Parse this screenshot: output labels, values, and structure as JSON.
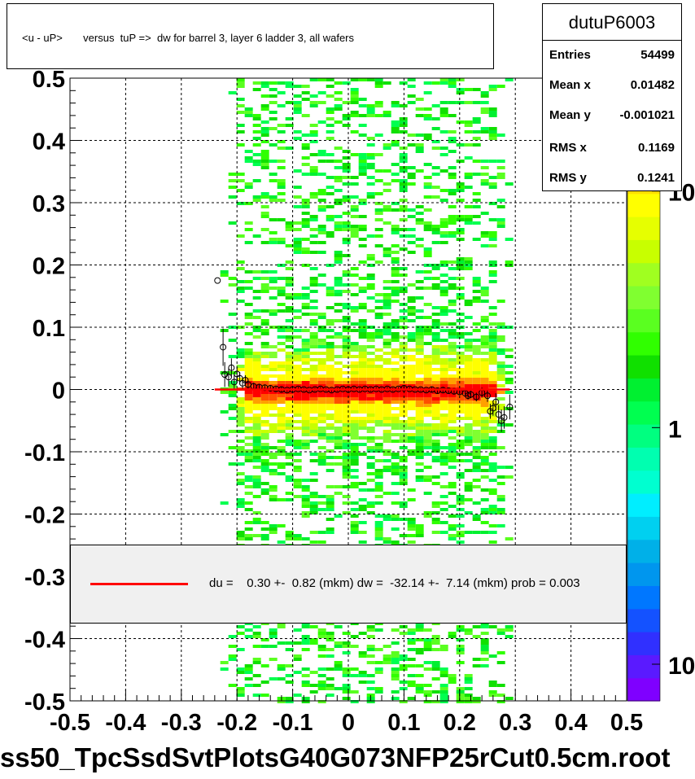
{
  "title": "<u - uP>       versus  tuP =>  dw for barrel 3, layer 6 ladder 3, all wafers",
  "stats": {
    "name": "dutuP6003",
    "rows": [
      {
        "label": "Entries",
        "value": "54499"
      },
      {
        "label": "Mean x",
        "value": "0.01482"
      },
      {
        "label": "Mean y",
        "value": "-0.001021"
      },
      {
        "label": "RMS x",
        "value": "0.1169"
      },
      {
        "label": "RMS y",
        "value": "0.1241"
      }
    ]
  },
  "legend": {
    "text": "du =    0.30 +-  0.82 (mkm) dw =  -32.14 +-  7.14 (mkm) prob = 0.003",
    "line_color": "#ff0000"
  },
  "footer": "ss50_TpcSsdSvtPlotsG40G073NFP25rCut0.5cm.root",
  "colorbar": {
    "labels": [
      "10",
      "1",
      "10"
    ],
    "label_values": [
      10,
      1,
      0.1
    ],
    "range": [
      0.07,
      30
    ],
    "colors": [
      "#7f00ff",
      "#5a1aff",
      "#3030ff",
      "#1452ff",
      "#0077ff",
      "#0096ee",
      "#00b0e8",
      "#00d0f0",
      "#00eeff",
      "#00ffd0",
      "#00ffb0",
      "#00ff80",
      "#00ff50",
      "#00f030",
      "#10e000",
      "#30ff00",
      "#5aff20",
      "#80ff30",
      "#a0ff20",
      "#c8ff00",
      "#e6ff00",
      "#ffff00",
      "#ffe000",
      "#ffa000",
      "#ff5000",
      "#ff0000",
      "#d00000"
    ]
  },
  "chart_data": {
    "type": "heatmap",
    "xlim": [
      -0.5,
      0.5
    ],
    "ylim": [
      -0.5,
      0.5
    ],
    "x_ticks": [
      -0.5,
      -0.4,
      -0.3,
      -0.2,
      -0.1,
      0,
      0.1,
      0.2,
      0.3,
      0.4,
      0.5
    ],
    "x_tick_labels": [
      "-0.5",
      "-0.4",
      "-0.3",
      "-0.2",
      "-0.1",
      "0",
      "0.1",
      "0.2",
      "0.3",
      "0.4",
      "0.5"
    ],
    "y_ticks": [
      -0.5,
      -0.4,
      -0.3,
      -0.2,
      -0.1,
      0,
      0.1,
      0.2,
      0.3,
      0.4,
      0.5
    ],
    "y_tick_labels": [
      "-0.5",
      "-0.4",
      "-0.3",
      "-0.2",
      "-0.1",
      "0",
      "0.1",
      "0.2",
      "0.3",
      "0.4",
      "0.5"
    ],
    "grid": true,
    "log_z": true,
    "occupied_x_range": [
      -0.23,
      0.29
    ],
    "profile_points": [
      {
        "x": -0.235,
        "y": 0.175
      },
      {
        "x": -0.225,
        "y": 0.068,
        "err": 0.03
      },
      {
        "x": -0.222,
        "y": 0.024,
        "err": 0.02
      },
      {
        "x": -0.215,
        "y": 0.02,
        "err": 0.015
      },
      {
        "x": -0.21,
        "y": 0.035,
        "err": 0.015
      },
      {
        "x": -0.205,
        "y": 0.012,
        "err": 0.012
      },
      {
        "x": -0.2,
        "y": 0.025,
        "err": 0.012
      },
      {
        "x": -0.195,
        "y": 0.018,
        "err": 0.01
      },
      {
        "x": -0.19,
        "y": 0.01,
        "err": 0.01
      },
      {
        "x": -0.185,
        "y": 0.015,
        "err": 0.008
      },
      {
        "x": -0.18,
        "y": 0.008,
        "err": 0.008
      },
      {
        "x": -0.17,
        "y": 0.005,
        "err": 0.006
      },
      {
        "x": -0.16,
        "y": 0.004,
        "err": 0.005
      },
      {
        "x": -0.15,
        "y": 0.003,
        "err": 0.005
      },
      {
        "x": -0.14,
        "y": 0.002,
        "err": 0.004
      },
      {
        "x": -0.13,
        "y": 0.001,
        "err": 0.004
      },
      {
        "x": -0.12,
        "y": 0.0,
        "err": 0.004
      },
      {
        "x": -0.11,
        "y": -0.001,
        "err": 0.003
      },
      {
        "x": -0.1,
        "y": 0.0,
        "err": 0.003
      },
      {
        "x": -0.09,
        "y": 0.001,
        "err": 0.003
      },
      {
        "x": -0.08,
        "y": 0.0,
        "err": 0.003
      },
      {
        "x": -0.07,
        "y": -0.001,
        "err": 0.003
      },
      {
        "x": -0.06,
        "y": 0.0,
        "err": 0.003
      },
      {
        "x": -0.05,
        "y": 0.001,
        "err": 0.003
      },
      {
        "x": -0.04,
        "y": 0.0,
        "err": 0.003
      },
      {
        "x": -0.03,
        "y": -0.001,
        "err": 0.003
      },
      {
        "x": -0.02,
        "y": 0.0,
        "err": 0.003
      },
      {
        "x": -0.01,
        "y": 0.001,
        "err": 0.003
      },
      {
        "x": 0.0,
        "y": 0.0,
        "err": 0.003
      },
      {
        "x": 0.01,
        "y": 0.001,
        "err": 0.003
      },
      {
        "x": 0.02,
        "y": 0.0,
        "err": 0.003
      },
      {
        "x": 0.03,
        "y": 0.001,
        "err": 0.003
      },
      {
        "x": 0.04,
        "y": 0.0,
        "err": 0.003
      },
      {
        "x": 0.05,
        "y": 0.001,
        "err": 0.003
      },
      {
        "x": 0.06,
        "y": 0.0,
        "err": 0.003
      },
      {
        "x": 0.07,
        "y": 0.001,
        "err": 0.003
      },
      {
        "x": 0.08,
        "y": 0.0,
        "err": 0.003
      },
      {
        "x": 0.09,
        "y": 0.001,
        "err": 0.003
      },
      {
        "x": 0.1,
        "y": 0.002,
        "err": 0.003
      },
      {
        "x": 0.11,
        "y": 0.001,
        "err": 0.003
      },
      {
        "x": 0.12,
        "y": 0.0,
        "err": 0.003
      },
      {
        "x": 0.13,
        "y": 0.0,
        "err": 0.003
      },
      {
        "x": 0.14,
        "y": -0.001,
        "err": 0.003
      },
      {
        "x": 0.15,
        "y": 0.0,
        "err": 0.004
      },
      {
        "x": 0.16,
        "y": -0.002,
        "err": 0.004
      },
      {
        "x": 0.17,
        "y": -0.001,
        "err": 0.004
      },
      {
        "x": 0.18,
        "y": -0.002,
        "err": 0.004
      },
      {
        "x": 0.19,
        "y": -0.003,
        "err": 0.005
      },
      {
        "x": 0.2,
        "y": -0.004,
        "err": 0.005
      },
      {
        "x": 0.21,
        "y": -0.006,
        "err": 0.005
      },
      {
        "x": 0.215,
        "y": -0.01,
        "err": 0.006
      },
      {
        "x": 0.22,
        "y": -0.008,
        "err": 0.006
      },
      {
        "x": 0.23,
        "y": -0.012,
        "err": 0.007
      },
      {
        "x": 0.24,
        "y": -0.005,
        "err": 0.008
      },
      {
        "x": 0.25,
        "y": -0.01,
        "err": 0.01
      },
      {
        "x": 0.255,
        "y": -0.035,
        "err": 0.012
      },
      {
        "x": 0.26,
        "y": -0.03,
        "err": 0.012
      },
      {
        "x": 0.265,
        "y": -0.02,
        "err": 0.014
      },
      {
        "x": 0.27,
        "y": -0.04,
        "err": 0.015
      },
      {
        "x": 0.275,
        "y": -0.05,
        "err": 0.018
      },
      {
        "x": 0.28,
        "y": -0.045,
        "err": 0.018
      },
      {
        "x": 0.29,
        "y": -0.028,
        "err": 0.02
      }
    ],
    "fit_line": {
      "x": [
        -0.24,
        0.29
      ],
      "y": [
        0.0,
        0.0
      ],
      "color": "#ff0000"
    }
  }
}
